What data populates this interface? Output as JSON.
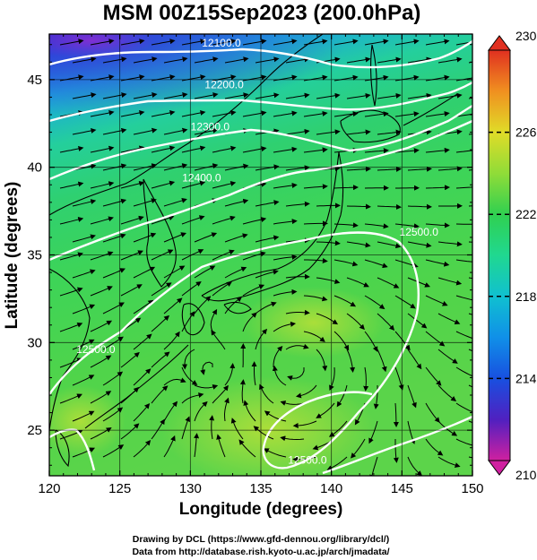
{
  "title": "MSM 00Z15Sep2023 (200.0hPa)",
  "x_axis": {
    "label": "Longitude (degrees)",
    "range": [
      120,
      150
    ],
    "ticks": [
      {
        "value": 120,
        "label": "120"
      },
      {
        "value": 125,
        "label": "125"
      },
      {
        "value": 130,
        "label": "130"
      },
      {
        "value": 135,
        "label": "135"
      },
      {
        "value": 140,
        "label": "140"
      },
      {
        "value": 145,
        "label": "145"
      },
      {
        "value": 150,
        "label": "150"
      }
    ]
  },
  "y_axis": {
    "label": "Latitude  (degrees)",
    "range": [
      22.4,
      47.6
    ],
    "ticks": [
      {
        "value": 25,
        "label": "25"
      },
      {
        "value": 30,
        "label": "30"
      },
      {
        "value": 35,
        "label": "35"
      },
      {
        "value": 40,
        "label": "40"
      },
      {
        "value": 45,
        "label": "45"
      }
    ]
  },
  "colorbar": {
    "range": [
      210,
      230
    ],
    "ticks": [
      {
        "value": 210,
        "label": "210"
      },
      {
        "value": 214,
        "label": "214"
      },
      {
        "value": 218,
        "label": "218"
      },
      {
        "value": 222,
        "label": "222"
      },
      {
        "value": 226,
        "label": "226"
      },
      {
        "value": 230,
        "label": "230"
      }
    ],
    "colors": [
      "#d020a0",
      "#3020c8",
      "#1070e8",
      "#10b0d8",
      "#20d8a0",
      "#30d050",
      "#70d838",
      "#c0e030",
      "#f0d020",
      "#f08020",
      "#e03020"
    ]
  },
  "contours": [
    {
      "label": "12100.0",
      "lon": 132.2,
      "lat": 47.1
    },
    {
      "label": "12200.0",
      "lon": 132.4,
      "lat": 44.7
    },
    {
      "label": "12300.0",
      "lon": 131.4,
      "lat": 42.3
    },
    {
      "label": "12400.0",
      "lon": 130.8,
      "lat": 39.4
    },
    {
      "label": "12500.0",
      "lon": 146.2,
      "lat": 36.3
    },
    {
      "label": "12500.0",
      "lon": 138.3,
      "lat": 23.3
    },
    {
      "label": "12500.0",
      "lon": 123.3,
      "lat": 29.6
    }
  ],
  "credits": [
    "Drawing by DCL (https://www.gfd-dennou.org/library/dcl/)",
    "Data from http://database.rish.kyoto-u.ac.jp/arch/jmadata/"
  ]
}
